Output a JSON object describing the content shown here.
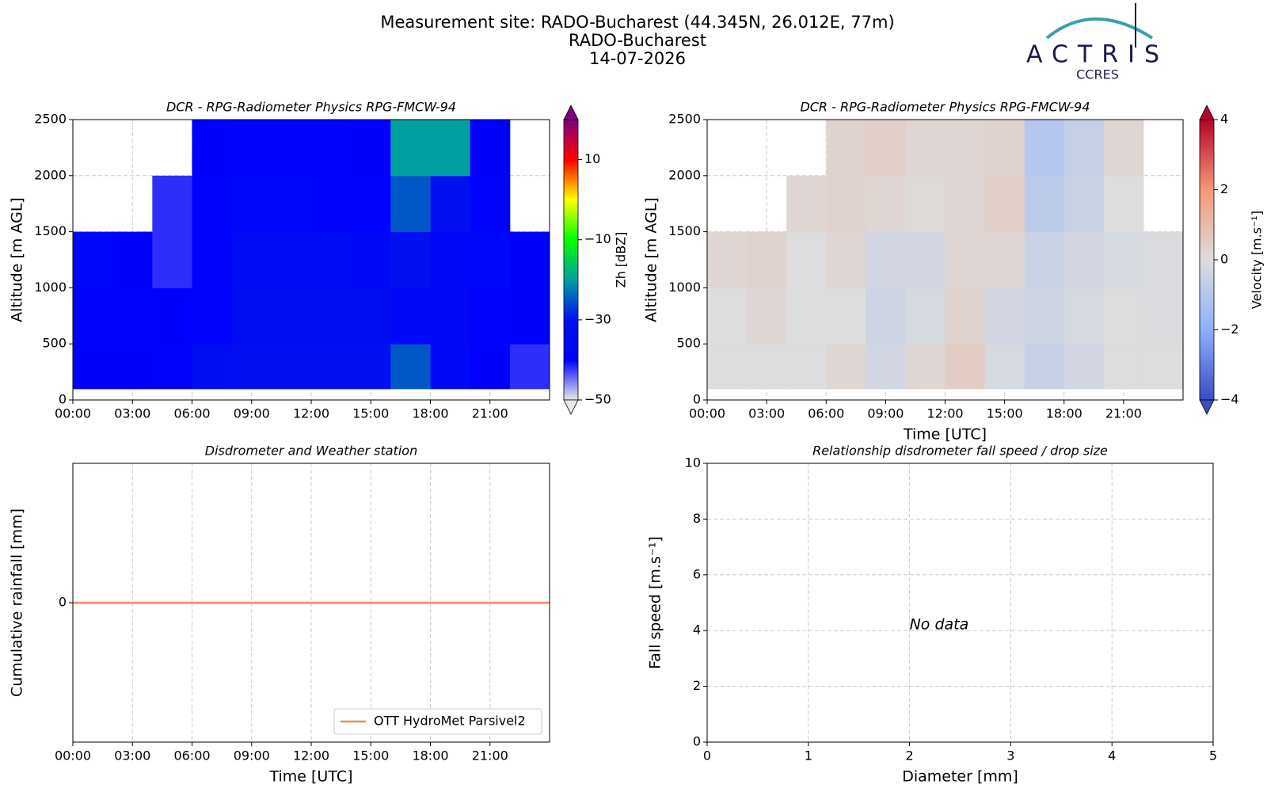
{
  "header": {
    "title_lines": [
      "Measurement site: RADO-Bucharest (44.345N, 26.012E, 77m)",
      "RADO-Bucharest",
      "14-07-2026"
    ],
    "logo": "ACTRIS",
    "logo_sub": "CCRES"
  },
  "chart_data": [
    {
      "type": "heatmap",
      "title": "DCR - RPG-Radiometer Physics RPG-FMCW-94",
      "ylabel": "Altitude [m AGL]",
      "xlim": [
        0,
        24
      ],
      "xticks": [
        {
          "value": 0,
          "label": "00:00"
        },
        {
          "value": 3,
          "label": "03:00"
        },
        {
          "value": 6,
          "label": "06:00"
        },
        {
          "value": 9,
          "label": "09:00"
        },
        {
          "value": 12,
          "label": "12:00"
        },
        {
          "value": 15,
          "label": "15:00"
        },
        {
          "value": 18,
          "label": "18:00"
        },
        {
          "value": 21,
          "label": "21:00"
        }
      ],
      "ylim": [
        0,
        2500
      ],
      "yticks": [
        0,
        500,
        1000,
        1500,
        2000,
        2500
      ],
      "grid": true,
      "xbins": [
        0,
        2,
        4,
        6,
        8,
        10,
        12,
        14,
        16,
        18,
        20,
        22,
        24
      ],
      "ybins": [
        100,
        500,
        1000,
        1500,
        2000,
        2500
      ],
      "values": [
        [
          -40,
          -40,
          -38,
          -32,
          -30,
          -30,
          -30,
          -30,
          -25,
          -35,
          -40,
          -42
        ],
        [
          -38,
          -38,
          -40,
          -38,
          -32,
          -32,
          -32,
          -32,
          -35,
          -35,
          -38,
          -40
        ],
        [
          -36,
          -40,
          -42,
          -38,
          -33,
          -33,
          -33,
          -35,
          -30,
          -35,
          -36,
          -40
        ],
        [
          null,
          null,
          -42,
          -38,
          -36,
          -36,
          -38,
          -38,
          -25,
          -30,
          -38,
          null
        ],
        [
          null,
          null,
          null,
          -40,
          -38,
          -38,
          -38,
          -40,
          -20,
          -20,
          -40,
          null
        ]
      ],
      "colorbar": {
        "label": "Zh [dBZ]",
        "lim": [
          -50,
          20
        ],
        "ticks": [
          {
            "value": -50,
            "label": "−50"
          },
          {
            "value": -30,
            "label": "−30"
          },
          {
            "value": -10,
            "label": "−10"
          },
          10
        ],
        "colormap": [
          "#e8e8e8",
          "#0000ff",
          "#0010f0",
          "#00a0a0",
          "#00ff00",
          "#ffff00",
          "#ff0000",
          "#800080"
        ]
      }
    },
    {
      "type": "heatmap",
      "title": "DCR - RPG-Radiometer Physics RPG-FMCW-94",
      "ylabel": "Altitude [m AGL]",
      "xlabel": "Time [UTC]",
      "xlim": [
        0,
        24
      ],
      "xticks": [
        {
          "value": 0,
          "label": "00:00"
        },
        {
          "value": 3,
          "label": "03:00"
        },
        {
          "value": 6,
          "label": "06:00"
        },
        {
          "value": 9,
          "label": "09:00"
        },
        {
          "value": 12,
          "label": "12:00"
        },
        {
          "value": 15,
          "label": "15:00"
        },
        {
          "value": 18,
          "label": "18:00"
        },
        {
          "value": 21,
          "label": "21:00"
        }
      ],
      "ylim": [
        0,
        2500
      ],
      "yticks": [
        0,
        500,
        1000,
        1500,
        2000,
        2500
      ],
      "grid": true,
      "xbins": [
        0,
        2,
        4,
        6,
        8,
        10,
        12,
        14,
        16,
        18,
        20,
        22,
        24
      ],
      "ybins": [
        100,
        500,
        1000,
        1500,
        2000,
        2500
      ],
      "values": [
        [
          0,
          0,
          0,
          0.2,
          -0.3,
          0.2,
          0.5,
          -0.2,
          -0.6,
          -0.3,
          0,
          0
        ],
        [
          0,
          0.2,
          0,
          0,
          -0.4,
          -0.2,
          0.3,
          -0.3,
          -0.4,
          -0.2,
          0,
          -0.1
        ],
        [
          0.2,
          0.3,
          0,
          0.2,
          -0.3,
          -0.3,
          0.2,
          0.2,
          -0.5,
          -0.3,
          -0.2,
          -0.1
        ],
        [
          null,
          null,
          0.2,
          0.3,
          0.2,
          0.1,
          0.2,
          0.4,
          -0.8,
          -0.5,
          0,
          null
        ],
        [
          null,
          null,
          null,
          0.3,
          0.4,
          0.2,
          0.2,
          0.3,
          -1,
          -0.6,
          0.2,
          null
        ]
      ],
      "colorbar": {
        "label": "Velocity [m.s⁻¹]",
        "lim": [
          -4,
          4
        ],
        "ticks": [
          {
            "value": -4,
            "label": "−4"
          },
          {
            "value": -2,
            "label": "−2"
          },
          0,
          2,
          4
        ],
        "colormap": [
          "#3b4cc0",
          "#8db0fe",
          "#dddddd",
          "#f4987a",
          "#b40426"
        ]
      }
    },
    {
      "type": "line",
      "title": "Disdrometer and Weather station",
      "ylabel": "Cumulative rainfall [mm]",
      "xlabel": "Time [UTC]",
      "xlim": [
        0,
        24
      ],
      "xticks": [
        {
          "value": 0,
          "label": "00:00"
        },
        {
          "value": 3,
          "label": "03:00"
        },
        {
          "value": 6,
          "label": "06:00"
        },
        {
          "value": 9,
          "label": "09:00"
        },
        {
          "value": 12,
          "label": "12:00"
        },
        {
          "value": 15,
          "label": "15:00"
        },
        {
          "value": 18,
          "label": "18:00"
        },
        {
          "value": 21,
          "label": "21:00"
        }
      ],
      "ylim": [
        -1,
        1
      ],
      "yticks": [
        0
      ],
      "grid": true,
      "legend": "lower-right",
      "x": [
        0,
        24
      ],
      "series": [
        {
          "name": "OTT HydroMet Parsivel2",
          "color": "#ef8a5f",
          "values": [
            0,
            0
          ]
        }
      ]
    },
    {
      "type": "scatter",
      "title": "Relationship disdrometer fall speed / drop size",
      "ylabel": "Fall speed [m.s⁻¹]",
      "xlabel": "Diameter [mm]",
      "xlim": [
        0,
        5
      ],
      "xticks": [
        0,
        1,
        2,
        3,
        4,
        5
      ],
      "ylim": [
        0,
        10
      ],
      "yticks": [
        0,
        2,
        4,
        6,
        8,
        10
      ],
      "grid": true,
      "annotation": "No data"
    }
  ]
}
